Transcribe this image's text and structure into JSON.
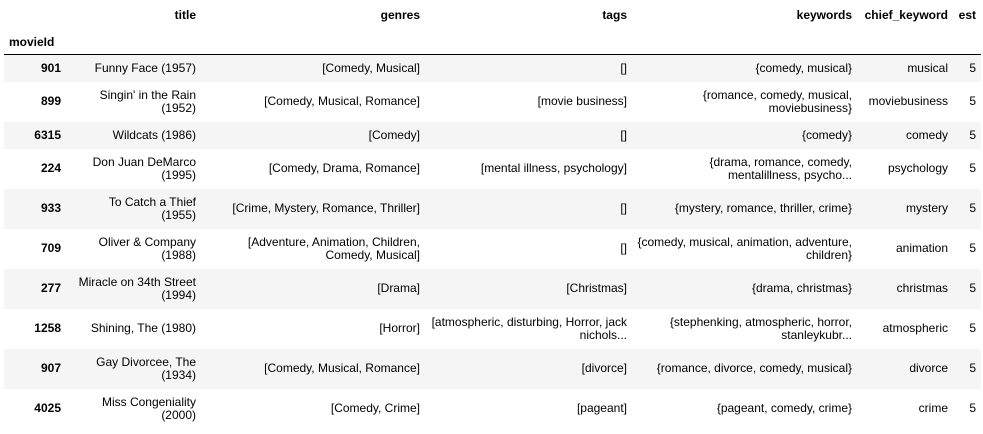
{
  "table": {
    "columns": [
      "title",
      "genres",
      "tags",
      "keywords",
      "chief_keyword",
      "est"
    ],
    "index_name": "movieId",
    "rows": [
      {
        "id": "901",
        "title": "Funny Face (1957)",
        "genres": "[Comedy, Musical]",
        "tags": "[]",
        "keywords": "{comedy, musical}",
        "chief_keyword": "musical",
        "est": "5"
      },
      {
        "id": "899",
        "title": "Singin' in the Rain (1952)",
        "genres": "[Comedy, Musical, Romance]",
        "tags": "[movie business]",
        "keywords": "{romance, comedy, musical, moviebusiness}",
        "chief_keyword": "moviebusiness",
        "est": "5"
      },
      {
        "id": "6315",
        "title": "Wildcats (1986)",
        "genres": "[Comedy]",
        "tags": "[]",
        "keywords": "{comedy}",
        "chief_keyword": "comedy",
        "est": "5"
      },
      {
        "id": "224",
        "title": "Don Juan DeMarco (1995)",
        "genres": "[Comedy, Drama, Romance]",
        "tags": "[mental illness, psychology]",
        "keywords": "{drama, romance, comedy, mentalillness, psycho...",
        "chief_keyword": "psychology",
        "est": "5"
      },
      {
        "id": "933",
        "title": "To Catch a Thief (1955)",
        "genres": "[Crime, Mystery, Romance, Thriller]",
        "tags": "[]",
        "keywords": "{mystery, romance, thriller, crime}",
        "chief_keyword": "mystery",
        "est": "5"
      },
      {
        "id": "709",
        "title": "Oliver & Company (1988)",
        "genres": "[Adventure, Animation, Children, Comedy, Musical]",
        "tags": "[]",
        "keywords": "{comedy, musical, animation, adventure, children}",
        "chief_keyword": "animation",
        "est": "5"
      },
      {
        "id": "277",
        "title": "Miracle on 34th Street (1994)",
        "genres": "[Drama]",
        "tags": "[Christmas]",
        "keywords": "{drama, christmas}",
        "chief_keyword": "christmas",
        "est": "5"
      },
      {
        "id": "1258",
        "title": "Shining, The (1980)",
        "genres": "[Horror]",
        "tags": "[atmospheric, disturbing, Horror, jack nichols...",
        "keywords": "{stephenking, atmospheric, horror, stanleykubr...",
        "chief_keyword": "atmospheric",
        "est": "5"
      },
      {
        "id": "907",
        "title": "Gay Divorcee, The (1934)",
        "genres": "[Comedy, Musical, Romance]",
        "tags": "[divorce]",
        "keywords": "{romance, divorce, comedy, musical}",
        "chief_keyword": "divorce",
        "est": "5"
      },
      {
        "id": "4025",
        "title": "Miss Congeniality (2000)",
        "genres": "[Comedy, Crime]",
        "tags": "[pageant]",
        "keywords": "{pageant, comedy, crime}",
        "chief_keyword": "crime",
        "est": "5"
      }
    ]
  }
}
